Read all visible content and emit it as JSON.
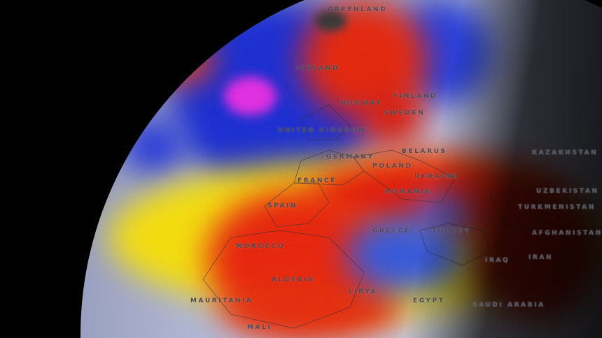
{
  "map": {
    "type": "globe weather anomaly map",
    "colors": {
      "cold_deep": "#1a22c8",
      "cold": "#3a5ce0",
      "neutral": "#c8cce0",
      "warm": "#f5e000",
      "hot": "#e82a10",
      "very_hot": "#8a0a08",
      "extreme_cold": "#e030e0"
    },
    "labels": {
      "greenland": "GREENLAND",
      "iceland": "ICELAND",
      "norway": "NORWAY",
      "sweden": "SWEDEN",
      "finland": "FINLAND",
      "uk": "UNITED KINGDOM",
      "germany": "GERMANY",
      "poland": "POLAND",
      "belarus": "BELARUS",
      "ukraine": "UKRAINE",
      "france": "FRANCE",
      "romania": "ROMANIA",
      "spain": "SPAIN",
      "morocco": "MOROCCO",
      "algeria": "ALGERIA",
      "libya": "LIBYA",
      "egypt": "EGYPT",
      "turkey": "TURKEY",
      "greece": "GREECE",
      "iraq": "IRAQ",
      "iran": "IRAN",
      "saudi": "SAUDI ARABIA",
      "mauritania": "MAURITANIA",
      "mali": "MALI",
      "kazakhstan": "KAZAKHSTAN",
      "uzbekistan": "UZBEKISTAN",
      "turkmenistan": "TURKMENISTAN",
      "afghanistan": "AFGHANISTAN"
    }
  }
}
